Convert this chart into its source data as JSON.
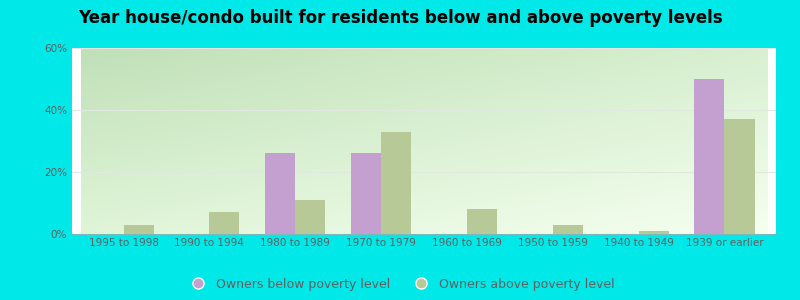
{
  "title": "Year house/condo built for residents below and above poverty levels",
  "categories": [
    "1995 to 1998",
    "1990 to 1994",
    "1980 to 1989",
    "1970 to 1979",
    "1960 to 1969",
    "1950 to 1959",
    "1940 to 1949",
    "1939 or earlier"
  ],
  "below_poverty": [
    0,
    0,
    26,
    26,
    0,
    0,
    0,
    50
  ],
  "above_poverty": [
    3,
    7,
    11,
    33,
    8,
    3,
    1,
    37
  ],
  "below_color": "#c4a0d0",
  "above_color": "#b8c998",
  "outer_bg": "#00e8e8",
  "ylim": [
    0,
    60
  ],
  "yticks": [
    0,
    20,
    40,
    60
  ],
  "ytick_labels": [
    "0%",
    "20%",
    "40%",
    "60%"
  ],
  "legend_below": "Owners below poverty level",
  "legend_above": "Owners above poverty level",
  "title_fontsize": 12,
  "tick_fontsize": 7.5,
  "legend_fontsize": 9,
  "bar_width": 0.35,
  "grid_color": "#e0e8e0",
  "tick_color": "#606060"
}
